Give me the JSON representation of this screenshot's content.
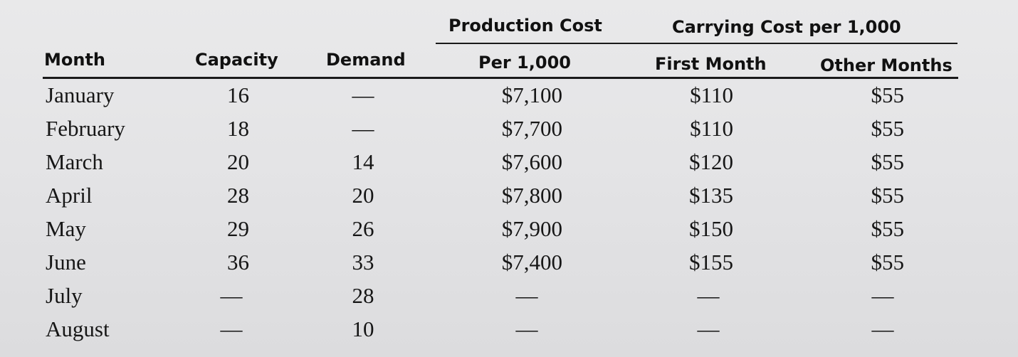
{
  "table": {
    "group_headers": {
      "production_cost": "Production Cost",
      "carrying_cost": "Carrying Cost per 1,000"
    },
    "headers": {
      "month": "Month",
      "capacity": "Capacity",
      "demand": "Demand",
      "per_1000": "Per 1,000",
      "first_month": "First Month",
      "other_months": "Other Months"
    },
    "rows": [
      {
        "month": "January",
        "capacity": "16",
        "demand": "—",
        "cost": "$7,100",
        "first": "$110",
        "other": "$55"
      },
      {
        "month": "February",
        "capacity": "18",
        "demand": "—",
        "cost": "$7,700",
        "first": "$110",
        "other": "$55"
      },
      {
        "month": "March",
        "capacity": "20",
        "demand": "14",
        "cost": "$7,600",
        "first": "$120",
        "other": "$55"
      },
      {
        "month": "April",
        "capacity": "28",
        "demand": "20",
        "cost": "$7,800",
        "first": "$135",
        "other": "$55"
      },
      {
        "month": "May",
        "capacity": "29",
        "demand": "26",
        "cost": "$7,900",
        "first": "$150",
        "other": "$55"
      },
      {
        "month": "June",
        "capacity": "36",
        "demand": "33",
        "cost": "$7,400",
        "first": "$155",
        "other": "$55"
      },
      {
        "month": "July",
        "capacity": "—",
        "demand": "28",
        "cost": "—",
        "first": "—",
        "other": "—"
      },
      {
        "month": "August",
        "capacity": "—",
        "demand": "10",
        "cost": "—",
        "first": "—",
        "other": "—"
      }
    ]
  }
}
